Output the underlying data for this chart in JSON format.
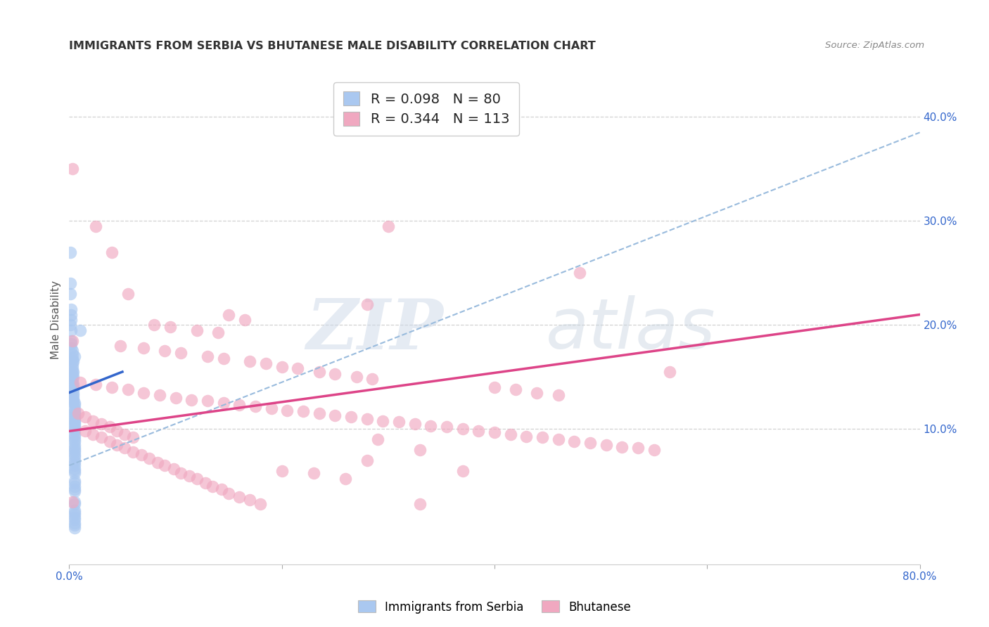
{
  "title": "IMMIGRANTS FROM SERBIA VS BHUTANESE MALE DISABILITY CORRELATION CHART",
  "source": "Source: ZipAtlas.com",
  "ylabel": "Male Disability",
  "xlim": [
    0.0,
    0.8
  ],
  "ylim": [
    -0.03,
    0.44
  ],
  "xticks": [
    0.0,
    0.2,
    0.4,
    0.6,
    0.8
  ],
  "xticklabels": [
    "0.0%",
    "",
    "",
    "",
    "80.0%"
  ],
  "yticks": [
    0.1,
    0.2,
    0.3,
    0.4
  ],
  "yticklabels": [
    "10.0%",
    "20.0%",
    "30.0%",
    "40.0%"
  ],
  "serbia_R": 0.098,
  "serbia_N": 80,
  "bhutan_R": 0.344,
  "bhutan_N": 113,
  "serbia_color": "#aac8f0",
  "bhutan_color": "#f0a8c0",
  "serbia_line_color": "#3366cc",
  "bhutan_line_color": "#dd4488",
  "dashed_line_color": "#99bbdd",
  "serbia_line": [
    [
      0.0,
      0.135
    ],
    [
      0.05,
      0.155
    ]
  ],
  "bhutan_line": [
    [
      0.0,
      0.098
    ],
    [
      0.8,
      0.21
    ]
  ],
  "dashed_line": [
    [
      0.0,
      0.065
    ],
    [
      0.8,
      0.385
    ]
  ],
  "serbia_scatter": [
    [
      0.001,
      0.27
    ],
    [
      0.001,
      0.24
    ],
    [
      0.001,
      0.23
    ],
    [
      0.002,
      0.215
    ],
    [
      0.002,
      0.21
    ],
    [
      0.002,
      0.205
    ],
    [
      0.001,
      0.2
    ],
    [
      0.002,
      0.195
    ],
    [
      0.002,
      0.185
    ],
    [
      0.002,
      0.182
    ],
    [
      0.002,
      0.178
    ],
    [
      0.003,
      0.175
    ],
    [
      0.003,
      0.172
    ],
    [
      0.003,
      0.168
    ],
    [
      0.003,
      0.165
    ],
    [
      0.003,
      0.162
    ],
    [
      0.003,
      0.158
    ],
    [
      0.003,
      0.155
    ],
    [
      0.003,
      0.152
    ],
    [
      0.003,
      0.148
    ],
    [
      0.003,
      0.145
    ],
    [
      0.004,
      0.143
    ],
    [
      0.004,
      0.14
    ],
    [
      0.004,
      0.138
    ],
    [
      0.004,
      0.135
    ],
    [
      0.004,
      0.133
    ],
    [
      0.004,
      0.13
    ],
    [
      0.004,
      0.128
    ],
    [
      0.004,
      0.126
    ],
    [
      0.005,
      0.125
    ],
    [
      0.005,
      0.123
    ],
    [
      0.005,
      0.12
    ],
    [
      0.005,
      0.118
    ],
    [
      0.005,
      0.116
    ],
    [
      0.005,
      0.114
    ],
    [
      0.005,
      0.112
    ],
    [
      0.005,
      0.11
    ],
    [
      0.005,
      0.108
    ],
    [
      0.005,
      0.106
    ],
    [
      0.005,
      0.104
    ],
    [
      0.005,
      0.102
    ],
    [
      0.005,
      0.1
    ],
    [
      0.005,
      0.098
    ],
    [
      0.005,
      0.095
    ],
    [
      0.005,
      0.093
    ],
    [
      0.005,
      0.09
    ],
    [
      0.005,
      0.088
    ],
    [
      0.005,
      0.085
    ],
    [
      0.005,
      0.082
    ],
    [
      0.005,
      0.08
    ],
    [
      0.005,
      0.078
    ],
    [
      0.005,
      0.075
    ],
    [
      0.005,
      0.073
    ],
    [
      0.005,
      0.07
    ],
    [
      0.005,
      0.068
    ],
    [
      0.005,
      0.065
    ],
    [
      0.005,
      0.062
    ],
    [
      0.005,
      0.06
    ],
    [
      0.005,
      0.058
    ],
    [
      0.01,
      0.195
    ],
    [
      0.005,
      0.05
    ],
    [
      0.005,
      0.048
    ],
    [
      0.005,
      0.045
    ],
    [
      0.005,
      0.042
    ],
    [
      0.005,
      0.04
    ],
    [
      0.005,
      0.022
    ],
    [
      0.005,
      0.02
    ],
    [
      0.005,
      0.018
    ],
    [
      0.005,
      0.015
    ],
    [
      0.005,
      0.013
    ],
    [
      0.005,
      0.01
    ],
    [
      0.005,
      0.008
    ],
    [
      0.005,
      0.005
    ],
    [
      0.005,
      0.17
    ],
    [
      0.004,
      0.165
    ],
    [
      0.004,
      0.155
    ],
    [
      0.004,
      0.15
    ],
    [
      0.005,
      0.03
    ],
    [
      0.005,
      0.028
    ]
  ],
  "bhutan_scatter": [
    [
      0.003,
      0.35
    ],
    [
      0.025,
      0.295
    ],
    [
      0.04,
      0.27
    ],
    [
      0.3,
      0.295
    ],
    [
      0.48,
      0.25
    ],
    [
      0.055,
      0.23
    ],
    [
      0.28,
      0.22
    ],
    [
      0.15,
      0.21
    ],
    [
      0.165,
      0.205
    ],
    [
      0.08,
      0.2
    ],
    [
      0.095,
      0.198
    ],
    [
      0.12,
      0.195
    ],
    [
      0.14,
      0.193
    ],
    [
      0.003,
      0.185
    ],
    [
      0.048,
      0.18
    ],
    [
      0.07,
      0.178
    ],
    [
      0.09,
      0.175
    ],
    [
      0.105,
      0.173
    ],
    [
      0.13,
      0.17
    ],
    [
      0.145,
      0.168
    ],
    [
      0.17,
      0.165
    ],
    [
      0.185,
      0.163
    ],
    [
      0.2,
      0.16
    ],
    [
      0.215,
      0.158
    ],
    [
      0.235,
      0.155
    ],
    [
      0.25,
      0.153
    ],
    [
      0.27,
      0.15
    ],
    [
      0.285,
      0.148
    ],
    [
      0.01,
      0.145
    ],
    [
      0.025,
      0.143
    ],
    [
      0.04,
      0.14
    ],
    [
      0.055,
      0.138
    ],
    [
      0.07,
      0.135
    ],
    [
      0.085,
      0.133
    ],
    [
      0.1,
      0.13
    ],
    [
      0.115,
      0.128
    ],
    [
      0.13,
      0.127
    ],
    [
      0.145,
      0.125
    ],
    [
      0.16,
      0.123
    ],
    [
      0.175,
      0.122
    ],
    [
      0.19,
      0.12
    ],
    [
      0.205,
      0.118
    ],
    [
      0.22,
      0.117
    ],
    [
      0.235,
      0.115
    ],
    [
      0.25,
      0.113
    ],
    [
      0.265,
      0.112
    ],
    [
      0.28,
      0.11
    ],
    [
      0.295,
      0.108
    ],
    [
      0.31,
      0.107
    ],
    [
      0.325,
      0.105
    ],
    [
      0.34,
      0.103
    ],
    [
      0.355,
      0.102
    ],
    [
      0.37,
      0.1
    ],
    [
      0.385,
      0.098
    ],
    [
      0.4,
      0.097
    ],
    [
      0.415,
      0.095
    ],
    [
      0.43,
      0.093
    ],
    [
      0.445,
      0.092
    ],
    [
      0.46,
      0.09
    ],
    [
      0.475,
      0.088
    ],
    [
      0.49,
      0.087
    ],
    [
      0.505,
      0.085
    ],
    [
      0.52,
      0.083
    ],
    [
      0.535,
      0.082
    ],
    [
      0.55,
      0.08
    ],
    [
      0.565,
      0.155
    ],
    [
      0.008,
      0.115
    ],
    [
      0.015,
      0.112
    ],
    [
      0.022,
      0.108
    ],
    [
      0.03,
      0.105
    ],
    [
      0.038,
      0.102
    ],
    [
      0.045,
      0.098
    ],
    [
      0.052,
      0.095
    ],
    [
      0.06,
      0.092
    ],
    [
      0.015,
      0.098
    ],
    [
      0.022,
      0.095
    ],
    [
      0.03,
      0.092
    ],
    [
      0.038,
      0.088
    ],
    [
      0.045,
      0.085
    ],
    [
      0.052,
      0.082
    ],
    [
      0.06,
      0.078
    ],
    [
      0.068,
      0.075
    ],
    [
      0.075,
      0.072
    ],
    [
      0.083,
      0.068
    ],
    [
      0.09,
      0.065
    ],
    [
      0.098,
      0.062
    ],
    [
      0.105,
      0.058
    ],
    [
      0.113,
      0.055
    ],
    [
      0.12,
      0.052
    ],
    [
      0.128,
      0.048
    ],
    [
      0.135,
      0.045
    ],
    [
      0.143,
      0.042
    ],
    [
      0.15,
      0.038
    ],
    [
      0.16,
      0.035
    ],
    [
      0.17,
      0.032
    ],
    [
      0.003,
      0.03
    ],
    [
      0.28,
      0.07
    ],
    [
      0.37,
      0.06
    ],
    [
      0.29,
      0.09
    ],
    [
      0.33,
      0.08
    ],
    [
      0.2,
      0.06
    ],
    [
      0.23,
      0.058
    ],
    [
      0.26,
      0.052
    ],
    [
      0.18,
      0.028
    ],
    [
      0.33,
      0.028
    ],
    [
      0.4,
      0.14
    ],
    [
      0.42,
      0.138
    ],
    [
      0.44,
      0.135
    ],
    [
      0.46,
      0.133
    ]
  ],
  "watermark_zip": "ZIP",
  "watermark_atlas": "atlas",
  "background_color": "#ffffff",
  "grid_color": "#cccccc"
}
